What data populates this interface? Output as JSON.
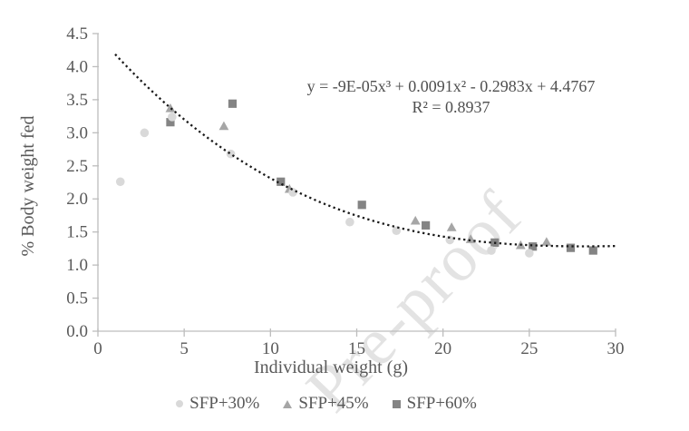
{
  "watermark": {
    "text": "Pre-proof",
    "color": "#e3e3e3"
  },
  "chart_data": {
    "type": "scatter",
    "title": "",
    "xlabel": "Individual weight (g)",
    "ylabel": "% Body weight fed",
    "xlim": [
      0,
      30
    ],
    "ylim": [
      0,
      4.5
    ],
    "x_ticks": [
      "0",
      "5",
      "10",
      "15",
      "20",
      "25",
      "30"
    ],
    "y_ticks": [
      "0.0",
      "0.5",
      "1.0",
      "1.5",
      "2.0",
      "2.5",
      "3.0",
      "3.5",
      "4.0",
      "4.5"
    ],
    "grid": false,
    "legend_position": "bottom-center",
    "axis_color": "#bdbdbd",
    "tick_label_color": "#595959",
    "annotation": {
      "equation": "y = -9E-05x³ + 0.0091x² - 0.2983x + 4.4767",
      "r_squared": "R² = 0.8937"
    },
    "trendline": {
      "type": "polynomial-order-3",
      "coefficients": {
        "x3": -9e-05,
        "x2": 0.0091,
        "x1": -0.2983,
        "intercept": 4.4767
      },
      "x_range": [
        1,
        30
      ],
      "style": "dotted",
      "color": "#1a1a1a"
    },
    "series": [
      {
        "name": "SFP+30%",
        "marker": "circle",
        "color": "#d9d9d9",
        "points": [
          [
            1.3,
            2.26
          ],
          [
            2.7,
            3.0
          ],
          [
            4.3,
            3.24
          ],
          [
            7.7,
            2.68
          ],
          [
            11.3,
            2.1
          ],
          [
            14.6,
            1.65
          ],
          [
            17.3,
            1.52
          ],
          [
            20.4,
            1.38
          ],
          [
            22.8,
            1.22
          ],
          [
            25.0,
            1.18
          ]
        ]
      },
      {
        "name": "SFP+45%",
        "marker": "triangle",
        "color": "#a6a6a6",
        "points": [
          [
            4.2,
            3.37
          ],
          [
            7.3,
            3.1
          ],
          [
            11.1,
            2.15
          ],
          [
            18.4,
            1.67
          ],
          [
            20.5,
            1.57
          ],
          [
            21.6,
            1.39
          ],
          [
            24.5,
            1.3
          ],
          [
            26.0,
            1.35
          ]
        ]
      },
      {
        "name": "SFP+60%",
        "marker": "square",
        "color": "#848484",
        "points": [
          [
            4.2,
            3.16
          ],
          [
            7.8,
            3.44
          ],
          [
            10.6,
            2.26
          ],
          [
            15.3,
            1.91
          ],
          [
            19.0,
            1.6
          ],
          [
            23.0,
            1.34
          ],
          [
            25.2,
            1.28
          ],
          [
            27.4,
            1.26
          ],
          [
            28.7,
            1.22
          ]
        ]
      }
    ]
  }
}
